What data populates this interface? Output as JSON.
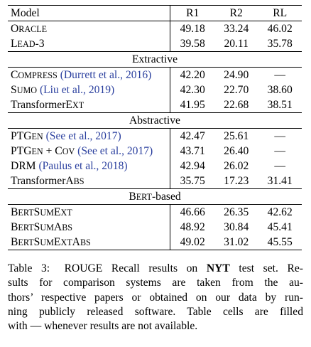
{
  "table": {
    "columns": [
      "Model",
      "R1",
      "R2",
      "RL"
    ],
    "groups": [
      {
        "section": "",
        "rows": [
          {
            "model": "Oracle",
            "cite": "",
            "r1": "49.18",
            "r2": "33.24",
            "rl": "46.02"
          },
          {
            "model": "Lead-3",
            "cite": "",
            "r1": "39.58",
            "r2": "20.11",
            "rl": "35.78"
          }
        ]
      },
      {
        "section": "Extractive",
        "rows": [
          {
            "model": "Compress",
            "cite": "(Durrett et al., 2016)",
            "r1": "42.20",
            "r2": "24.90",
            "rl": "—"
          },
          {
            "model": "Sumo",
            "cite": "(Liu et al., 2019)",
            "r1": "42.30",
            "r2": "22.70",
            "rl": "38.60"
          },
          {
            "model": "TransformerExt",
            "cite": "",
            "r1": "41.95",
            "r2": "22.68",
            "rl": "38.51"
          }
        ]
      },
      {
        "section": "Abstractive",
        "rows": [
          {
            "model": "PTGen",
            "cite": "(See et al., 2017)",
            "r1": "42.47",
            "r2": "25.61",
            "rl": "—"
          },
          {
            "model": "PTGen + Cov",
            "cite": "(See et al., 2017)",
            "r1": "43.71",
            "r2": "26.40",
            "rl": "—"
          },
          {
            "model": "DRM",
            "cite": "(Paulus et al., 2018)",
            "r1": "42.94",
            "r2": "26.02",
            "rl": "—"
          },
          {
            "model": "TransformerAbs",
            "cite": "",
            "r1": "35.75",
            "r2": "17.23",
            "rl": "31.41"
          }
        ]
      },
      {
        "section": "Bert-based",
        "rows": [
          {
            "model": "BertSumExt",
            "cite": "",
            "r1": "46.66",
            "r2": "26.35",
            "rl": "42.62"
          },
          {
            "model": "BertSumAbs",
            "cite": "",
            "r1": "48.92",
            "r2": "30.84",
            "rl": "45.41"
          },
          {
            "model": "BertSumExtAbs",
            "cite": "",
            "r1": "49.02",
            "r2": "31.02",
            "rl": "45.55"
          }
        ]
      }
    ]
  },
  "caption": {
    "label": "Table 3:",
    "lines": [
      [
        "ROUGE Recall results on ",
        "NYT",
        " test set. Re-"
      ],
      [
        "sults for comparison systems are taken from the au-"
      ],
      [
        "thors’ respective papers or obtained on our data by run-"
      ],
      [
        "ning publicly released software. Table cells are filled"
      ],
      [
        "with — whenever results are not available."
      ]
    ]
  }
}
